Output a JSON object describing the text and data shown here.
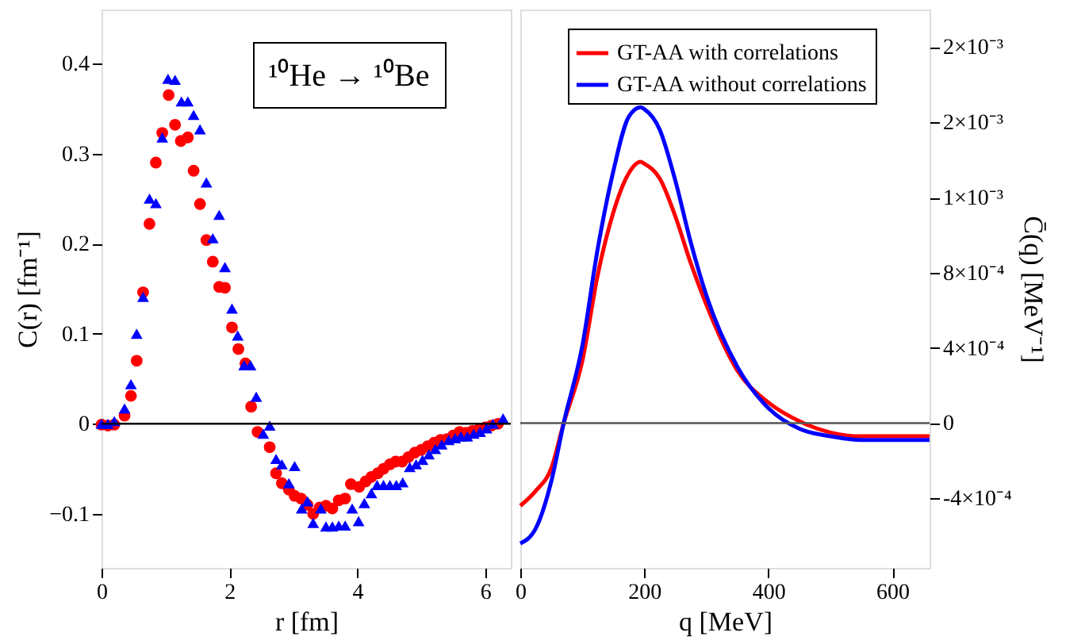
{
  "chart_data": [
    {
      "type": "scatter",
      "xlabel": "r [fm]",
      "ylabel": "C(r) [fm⁻¹]",
      "xlim": [
        0,
        6.4
      ],
      "ylim": [
        -0.16,
        0.46
      ],
      "xticks": [
        0,
        2,
        4,
        6
      ],
      "yticks": [
        -0.1,
        0,
        0.1,
        0.2,
        0.3,
        0.4
      ],
      "grid": false,
      "legend": false,
      "annotations": [
        "¹⁰He → ¹⁰Be"
      ],
      "ref_lines": [
        {
          "axis": "y",
          "value": 0,
          "color": "#000000"
        }
      ],
      "series": [
        {
          "color": "#ff0000",
          "marker": "circle",
          "x": [
            0,
            0.1,
            0.2,
            0.36,
            0.46,
            0.55,
            0.65,
            0.75,
            0.85,
            0.95,
            1.05,
            1.15,
            1.24,
            1.35,
            1.44,
            1.54,
            1.64,
            1.74,
            1.84,
            1.93,
            2.04,
            2.14,
            2.25,
            2.34,
            2.44,
            2.63,
            2.73,
            2.82,
            2.93,
            3.02,
            3.12,
            3.22,
            3.31,
            3.41,
            3.51,
            3.61,
            3.71,
            3.81,
            3.9,
            4.03,
            4.13,
            4.22,
            4.32,
            4.41,
            4.51,
            4.6,
            4.7,
            4.8,
            4.9,
            5.0,
            5.1,
            5.2,
            5.3,
            5.4,
            5.5,
            5.6,
            5.7,
            5.8,
            5.9,
            6.0,
            6.1,
            6.2
          ],
          "values": [
            -0.001,
            -0.002,
            -0.001,
            0.009,
            0.031,
            0.07,
            0.146,
            0.222,
            0.29,
            0.323,
            0.365,
            0.332,
            0.314,
            0.318,
            0.281,
            0.244,
            0.204,
            0.18,
            0.152,
            0.151,
            0.107,
            0.083,
            0.067,
            0.019,
            -0.009,
            -0.026,
            -0.055,
            -0.066,
            -0.073,
            -0.08,
            -0.083,
            -0.09,
            -0.1,
            -0.093,
            -0.091,
            -0.094,
            -0.085,
            -0.083,
            -0.067,
            -0.07,
            -0.064,
            -0.059,
            -0.055,
            -0.05,
            -0.045,
            -0.042,
            -0.042,
            -0.037,
            -0.032,
            -0.029,
            -0.025,
            -0.021,
            -0.018,
            -0.017,
            -0.013,
            -0.009,
            -0.01,
            -0.008,
            -0.006,
            -0.004,
            -0.002,
            0
          ]
        },
        {
          "color": "#0000ff",
          "marker": "triangle",
          "x": [
            0,
            0.1,
            0.2,
            0.36,
            0.46,
            0.55,
            0.65,
            0.75,
            0.85,
            0.95,
            1.04,
            1.15,
            1.25,
            1.35,
            1.44,
            1.54,
            1.64,
            1.74,
            1.84,
            1.93,
            2.04,
            2.13,
            2.23,
            2.33,
            2.42,
            2.53,
            2.63,
            2.73,
            2.82,
            2.93,
            3.02,
            3.13,
            3.22,
            3.31,
            3.43,
            3.51,
            3.61,
            3.71,
            3.81,
            3.92,
            4.02,
            4.11,
            4.22,
            4.31,
            4.41,
            4.51,
            4.61,
            4.71,
            4.82,
            4.92,
            5.02,
            5.12,
            5.22,
            5.32,
            5.43,
            5.53,
            5.62,
            5.72,
            5.82,
            5.92,
            6.02,
            6.12,
            6.28
          ],
          "values": [
            0,
            0,
            0.003,
            0.017,
            0.044,
            0.1,
            0.141,
            0.25,
            0.245,
            0.318,
            0.383,
            0.382,
            0.358,
            0.358,
            0.343,
            0.327,
            0.268,
            0.206,
            0.232,
            0.174,
            0.128,
            0.098,
            0.065,
            0.065,
            0.03,
            -0.011,
            -0.002,
            -0.039,
            -0.045,
            -0.066,
            -0.047,
            -0.094,
            -0.086,
            -0.11,
            -0.094,
            -0.114,
            -0.114,
            -0.113,
            -0.113,
            -0.094,
            -0.108,
            -0.088,
            -0.077,
            -0.068,
            -0.068,
            -0.068,
            -0.068,
            -0.065,
            -0.048,
            -0.045,
            -0.04,
            -0.034,
            -0.028,
            -0.023,
            -0.018,
            -0.016,
            -0.014,
            -0.014,
            -0.011,
            -0.009,
            -0.005,
            0,
            0.006
          ]
        }
      ]
    },
    {
      "type": "line",
      "xlabel": "q [MeV]",
      "y2label": "C̄(q) [MeV⁻¹]",
      "xlim": [
        0,
        660
      ],
      "xticks": [
        0,
        200,
        400,
        600
      ],
      "y2lim": [
        -0.00077,
        0.0022
      ],
      "y2ticks": [
        {
          "value": -0.0004,
          "label": "-4×10⁻⁴"
        },
        0,
        {
          "value": 0.0004,
          "label": "4×10⁻⁴"
        },
        {
          "value": 0.0008,
          "label": "8×10⁻⁴"
        },
        {
          "value": 0.0012,
          "label": "1×10⁻³"
        },
        {
          "value": 0.0016,
          "label": "2×10⁻³"
        },
        {
          "value": 0.002,
          "label": "2×10⁻³"
        }
      ],
      "grid": false,
      "legend": "top",
      "line_style": "solid",
      "marker": "none",
      "ref_lines": [
        {
          "axis": "y2",
          "value": 0,
          "color": "#555555"
        }
      ],
      "x": [
        0,
        25,
        50,
        70,
        100,
        125,
        150,
        175,
        194,
        200,
        225,
        250,
        275,
        300,
        350,
        400,
        450,
        500,
        550,
        600,
        660
      ],
      "series": [
        {
          "name": "GT-AA with correlations",
          "color": "#ff0000",
          "axis": "y2",
          "values": [
            -0.00044,
            -0.00036,
            -0.00024,
            0,
            0.00033,
            0.00079,
            0.00112,
            0.00133,
            0.00139,
            0.00138,
            0.0013,
            0.0011,
            0.00085,
            0.00063,
            0.00028,
            0.00011,
            1e-05,
            -5e-05,
            -7e-05,
            -7e-05,
            -7e-05
          ]
        },
        {
          "name": "GT-AA without correlations",
          "color": "#0000ff",
          "axis": "y2",
          "values": [
            -0.00064,
            -0.00056,
            -0.00031,
            0,
            0.00041,
            0.00093,
            0.00134,
            0.00163,
            0.00168,
            0.00167,
            0.00156,
            0.00129,
            0.00096,
            0.00068,
            0.0003,
            8e-05,
            -3e-05,
            -7e-05,
            -9e-05,
            -9e-05,
            -9e-05
          ]
        }
      ]
    }
  ]
}
